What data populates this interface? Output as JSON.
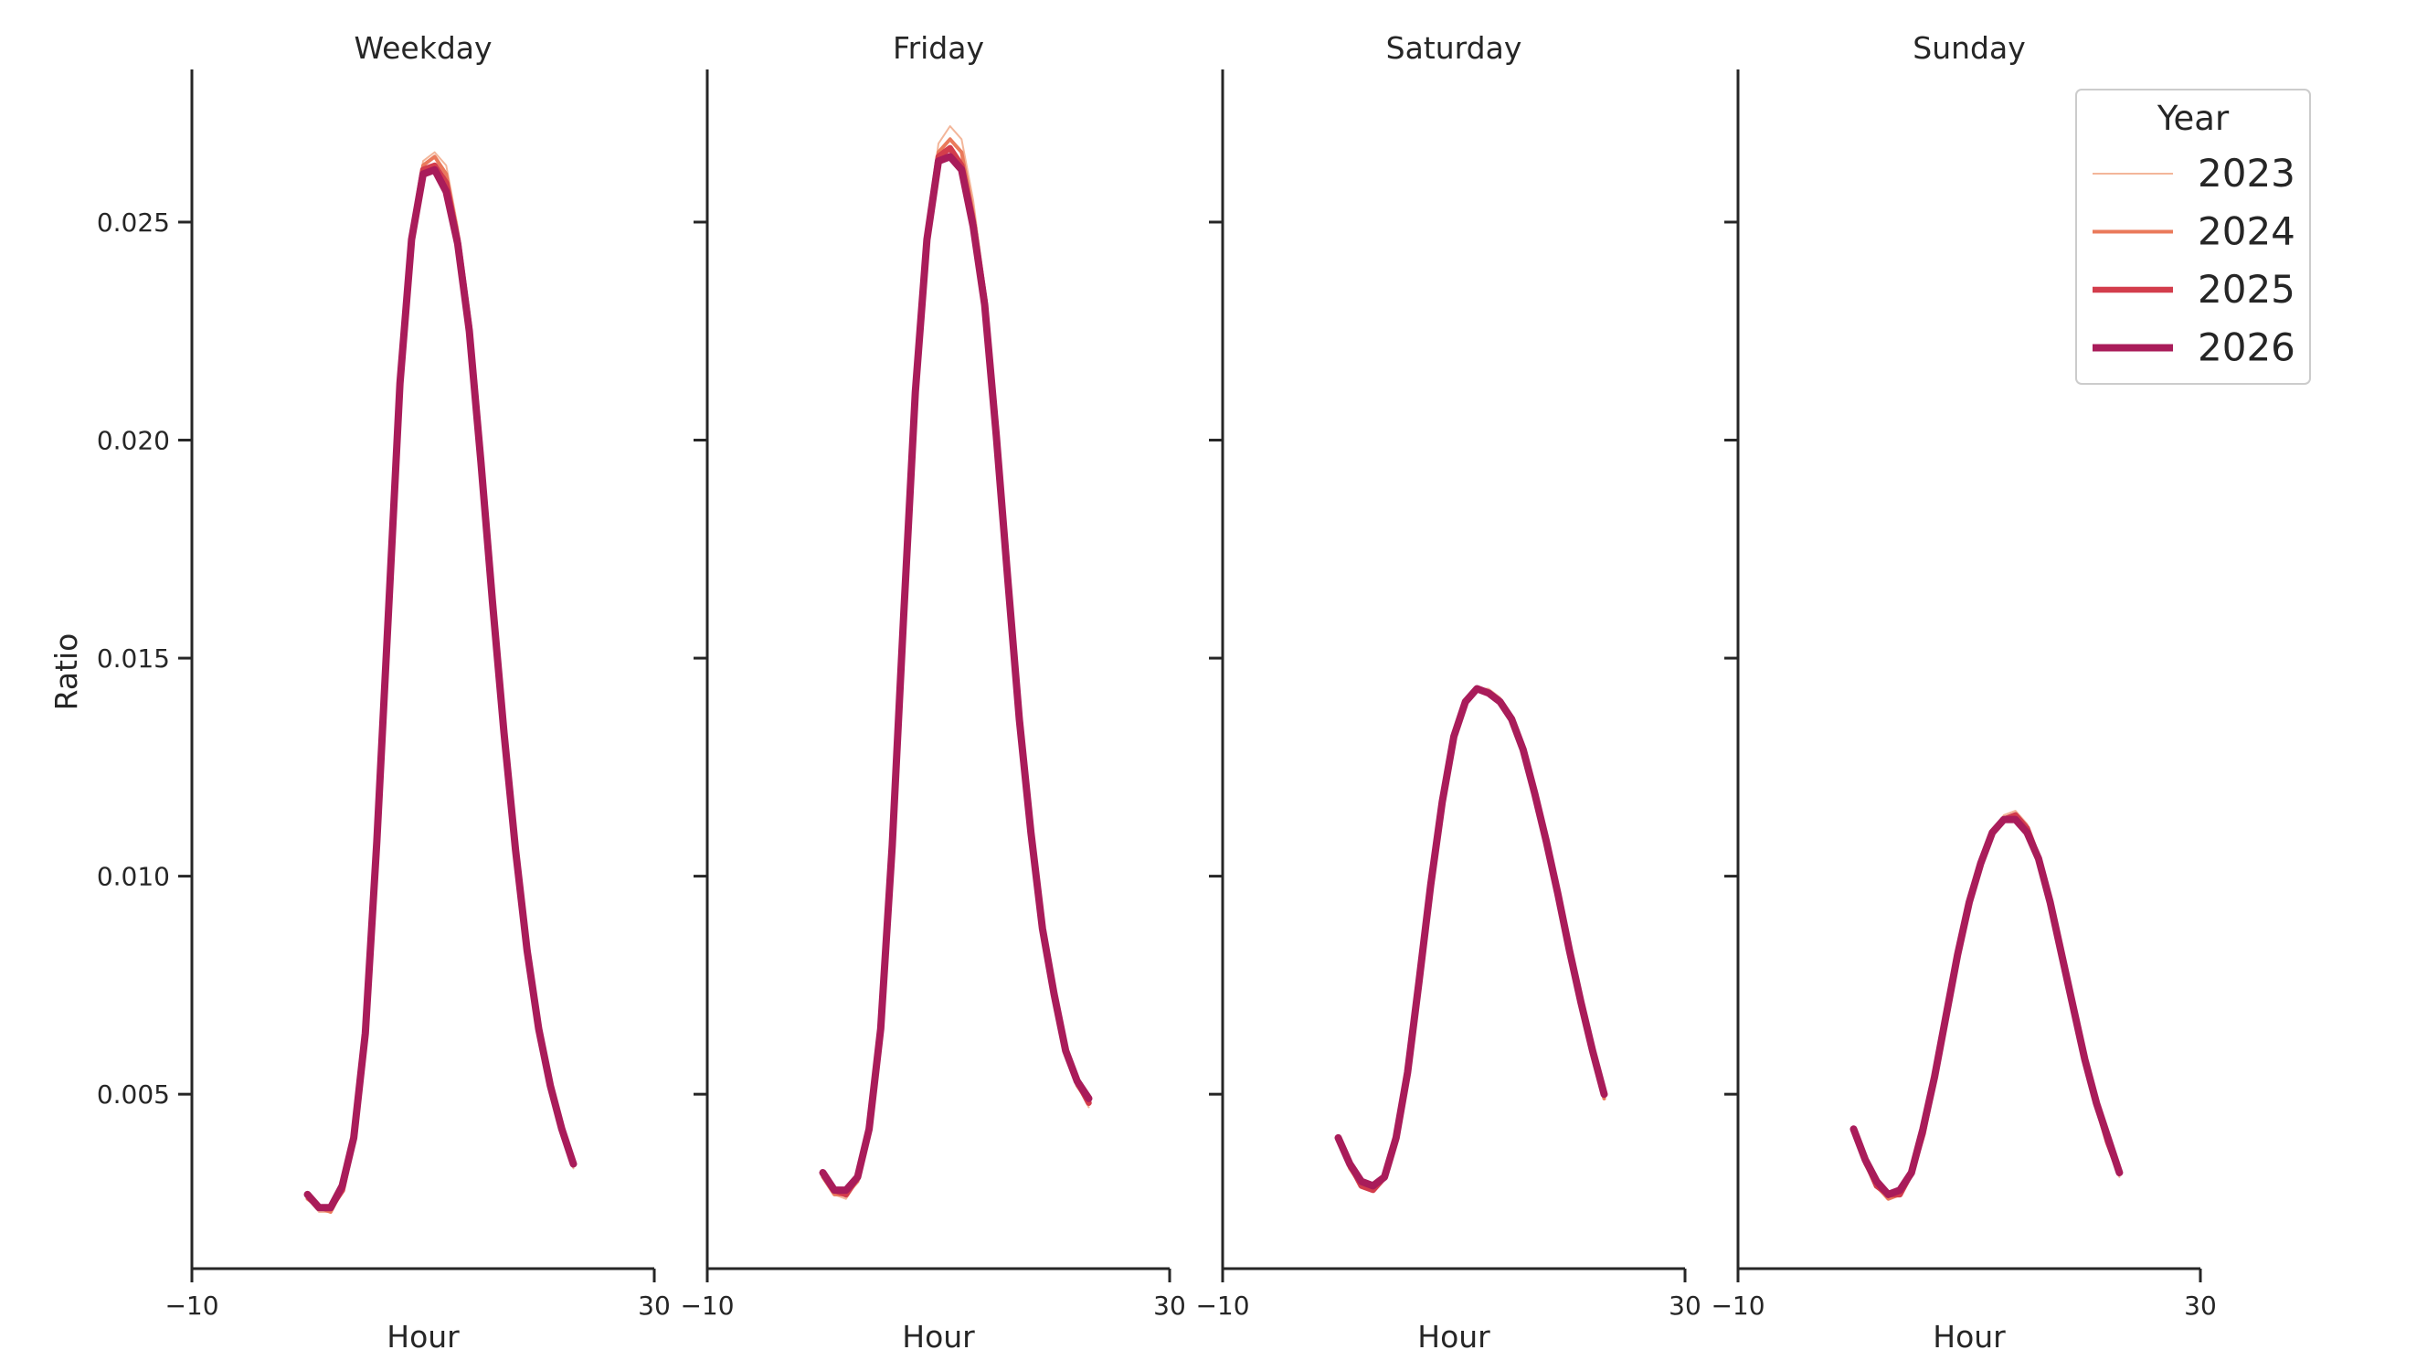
{
  "chart_data": {
    "type": "line",
    "ylabel": "Ratio",
    "ylim": [
      0.001,
      0.0285
    ],
    "yticks": [
      0.005,
      0.01,
      0.015,
      0.02,
      0.025
    ],
    "ytick_labels": [
      "0.005",
      "0.010",
      "0.015",
      "0.020",
      "0.025"
    ],
    "x": [
      0,
      1,
      2,
      3,
      4,
      5,
      6,
      7,
      8,
      9,
      10,
      11,
      12,
      13,
      14,
      15,
      16,
      17,
      18,
      19,
      20,
      21,
      22,
      23
    ],
    "legend": {
      "title": "Year",
      "placement": "top-right",
      "entries": [
        {
          "label": "2023",
          "color": "#f3b69a",
          "width": 2
        },
        {
          "label": "2024",
          "color": "#ea7a5b",
          "width": 4
        },
        {
          "label": "2025",
          "color": "#d33d4c",
          "width": 6.5
        },
        {
          "label": "2026",
          "color": "#a91c5a",
          "width": 8
        }
      ]
    },
    "panels": [
      {
        "title": "Weekday",
        "xlabel": "Hour",
        "xlim": [
          -10,
          30
        ],
        "xtick_labels": [
          "−10",
          "30"
        ],
        "show_ytick_labels": true,
        "series": [
          {
            "year": "2023",
            "values": [
              0.0026,
              0.0023,
              0.0023,
              0.0028,
              0.0039,
              0.0064,
              0.0108,
              0.016,
              0.0213,
              0.0246,
              0.0264,
              0.0266,
              0.0263,
              0.0249,
              0.0229,
              0.0199,
              0.0166,
              0.0134,
              0.0106,
              0.0082,
              0.0065,
              0.0052,
              0.0041,
              0.0033
            ]
          },
          {
            "year": "2024",
            "values": [
              0.0026,
              0.0024,
              0.0023,
              0.0028,
              0.0039,
              0.0064,
              0.0108,
              0.016,
              0.0213,
              0.0246,
              0.0263,
              0.0265,
              0.0261,
              0.0247,
              0.0227,
              0.0197,
              0.0165,
              0.0133,
              0.0106,
              0.0082,
              0.0065,
              0.0052,
              0.0042,
              0.0034
            ]
          },
          {
            "year": "2025",
            "values": [
              0.0027,
              0.0024,
              0.0024,
              0.0028,
              0.004,
              0.0064,
              0.0108,
              0.016,
              0.0213,
              0.0246,
              0.0262,
              0.0263,
              0.0259,
              0.0246,
              0.0226,
              0.0196,
              0.0164,
              0.0133,
              0.0106,
              0.0083,
              0.0065,
              0.0052,
              0.0042,
              0.0034
            ]
          },
          {
            "year": "2026",
            "values": [
              0.0027,
              0.0024,
              0.0024,
              0.0029,
              0.004,
              0.0064,
              0.0108,
              0.016,
              0.0213,
              0.0246,
              0.0261,
              0.0262,
              0.0257,
              0.0245,
              0.0225,
              0.0195,
              0.0163,
              0.0133,
              0.0106,
              0.0083,
              0.0065,
              0.0052,
              0.0042,
              0.0034
            ]
          }
        ]
      },
      {
        "title": "Friday",
        "xlabel": "Hour",
        "xlim": [
          -10,
          30
        ],
        "xtick_labels": [
          "−10",
          "30"
        ],
        "show_ytick_labels": false,
        "series": [
          {
            "year": "2023",
            "values": [
              0.0031,
              0.0027,
              0.0026,
              0.003,
              0.0041,
              0.0065,
              0.0108,
              0.0161,
              0.0212,
              0.0248,
              0.0268,
              0.0272,
              0.0269,
              0.0255,
              0.0235,
              0.0205,
              0.017,
              0.0138,
              0.011,
              0.0088,
              0.0073,
              0.006,
              0.0052,
              0.0047
            ]
          },
          {
            "year": "2024",
            "values": [
              0.0031,
              0.0027,
              0.0027,
              0.003,
              0.0041,
              0.0065,
              0.0108,
              0.016,
              0.0211,
              0.0247,
              0.0266,
              0.0269,
              0.0266,
              0.0252,
              0.0233,
              0.0203,
              0.0169,
              0.0137,
              0.011,
              0.0088,
              0.0073,
              0.006,
              0.0052,
              0.0048
            ]
          },
          {
            "year": "2025",
            "values": [
              0.0032,
              0.0028,
              0.0027,
              0.0031,
              0.0042,
              0.0065,
              0.0107,
              0.016,
              0.0211,
              0.0246,
              0.0265,
              0.0267,
              0.0263,
              0.025,
              0.0232,
              0.0202,
              0.0168,
              0.0137,
              0.011,
              0.0088,
              0.0073,
              0.006,
              0.0053,
              0.0048
            ]
          },
          {
            "year": "2026",
            "values": [
              0.0032,
              0.0028,
              0.0028,
              0.0031,
              0.0042,
              0.0065,
              0.0107,
              0.016,
              0.0211,
              0.0246,
              0.0264,
              0.0265,
              0.0262,
              0.0249,
              0.0231,
              0.0201,
              0.0168,
              0.0136,
              0.011,
              0.0088,
              0.0073,
              0.006,
              0.0053,
              0.0049
            ]
          }
        ]
      },
      {
        "title": "Saturday",
        "xlabel": "Hour",
        "xlim": [
          -10,
          30
        ],
        "xtick_labels": [
          "−10",
          "30"
        ],
        "show_ytick_labels": false,
        "series": [
          {
            "year": "2023",
            "values": [
              0.004,
              0.0033,
              0.0029,
              0.0028,
              0.0031,
              0.004,
              0.0055,
              0.0076,
              0.0097,
              0.0117,
              0.0132,
              0.014,
              0.0143,
              0.0143,
              0.0141,
              0.0137,
              0.013,
              0.012,
              0.0108,
              0.0096,
              0.0083,
              0.007,
              0.0058,
              0.0049
            ]
          },
          {
            "year": "2024",
            "values": [
              0.004,
              0.0033,
              0.0029,
              0.0028,
              0.0031,
              0.004,
              0.0055,
              0.0076,
              0.0097,
              0.0117,
              0.0132,
              0.014,
              0.0143,
              0.0142,
              0.014,
              0.0136,
              0.0129,
              0.0119,
              0.0108,
              0.0096,
              0.0083,
              0.0071,
              0.0059,
              0.0049
            ]
          },
          {
            "year": "2025",
            "values": [
              0.004,
              0.0034,
              0.0029,
              0.0028,
              0.0031,
              0.004,
              0.0055,
              0.0076,
              0.0098,
              0.0117,
              0.0132,
              0.014,
              0.0143,
              0.0142,
              0.014,
              0.0136,
              0.0129,
              0.0119,
              0.0108,
              0.0096,
              0.0083,
              0.0071,
              0.006,
              0.005
            ]
          },
          {
            "year": "2026",
            "values": [
              0.004,
              0.0034,
              0.003,
              0.0029,
              0.0031,
              0.004,
              0.0055,
              0.0076,
              0.0098,
              0.0117,
              0.0132,
              0.014,
              0.0143,
              0.0142,
              0.014,
              0.0136,
              0.0129,
              0.0119,
              0.0108,
              0.0096,
              0.0083,
              0.0071,
              0.006,
              0.005
            ]
          }
        ]
      },
      {
        "title": "Sunday",
        "xlabel": "Hour",
        "xlim": [
          -10,
          30
        ],
        "xtick_labels": [
          "−10",
          "30"
        ],
        "show_ytick_labels": false,
        "series": [
          {
            "year": "2023",
            "values": [
              0.0042,
              0.0034,
              0.0029,
              0.0026,
              0.0027,
              0.0032,
              0.0041,
              0.0054,
              0.0068,
              0.0082,
              0.0094,
              0.0103,
              0.011,
              0.0114,
              0.0115,
              0.0112,
              0.0105,
              0.0095,
              0.0083,
              0.007,
              0.0058,
              0.0048,
              0.0039,
              0.0031
            ]
          },
          {
            "year": "2024",
            "values": [
              0.0042,
              0.0034,
              0.0029,
              0.0026,
              0.0027,
              0.0032,
              0.0041,
              0.0054,
              0.0068,
              0.0082,
              0.0094,
              0.0103,
              0.011,
              0.0113,
              0.0114,
              0.0111,
              0.0104,
              0.0094,
              0.0082,
              0.007,
              0.0058,
              0.0048,
              0.0039,
              0.0032
            ]
          },
          {
            "year": "2025",
            "values": [
              0.0042,
              0.0035,
              0.0029,
              0.0027,
              0.0027,
              0.0032,
              0.0041,
              0.0054,
              0.0068,
              0.0082,
              0.0094,
              0.0103,
              0.011,
              0.0113,
              0.0114,
              0.0111,
              0.0104,
              0.0094,
              0.0082,
              0.007,
              0.0058,
              0.0048,
              0.0039,
              0.0032
            ]
          },
          {
            "year": "2026",
            "values": [
              0.0042,
              0.0035,
              0.003,
              0.0027,
              0.0028,
              0.0032,
              0.0042,
              0.0054,
              0.0068,
              0.0082,
              0.0094,
              0.0103,
              0.011,
              0.0113,
              0.0113,
              0.011,
              0.0104,
              0.0094,
              0.0082,
              0.007,
              0.0058,
              0.0048,
              0.004,
              0.0032
            ]
          }
        ]
      }
    ]
  }
}
